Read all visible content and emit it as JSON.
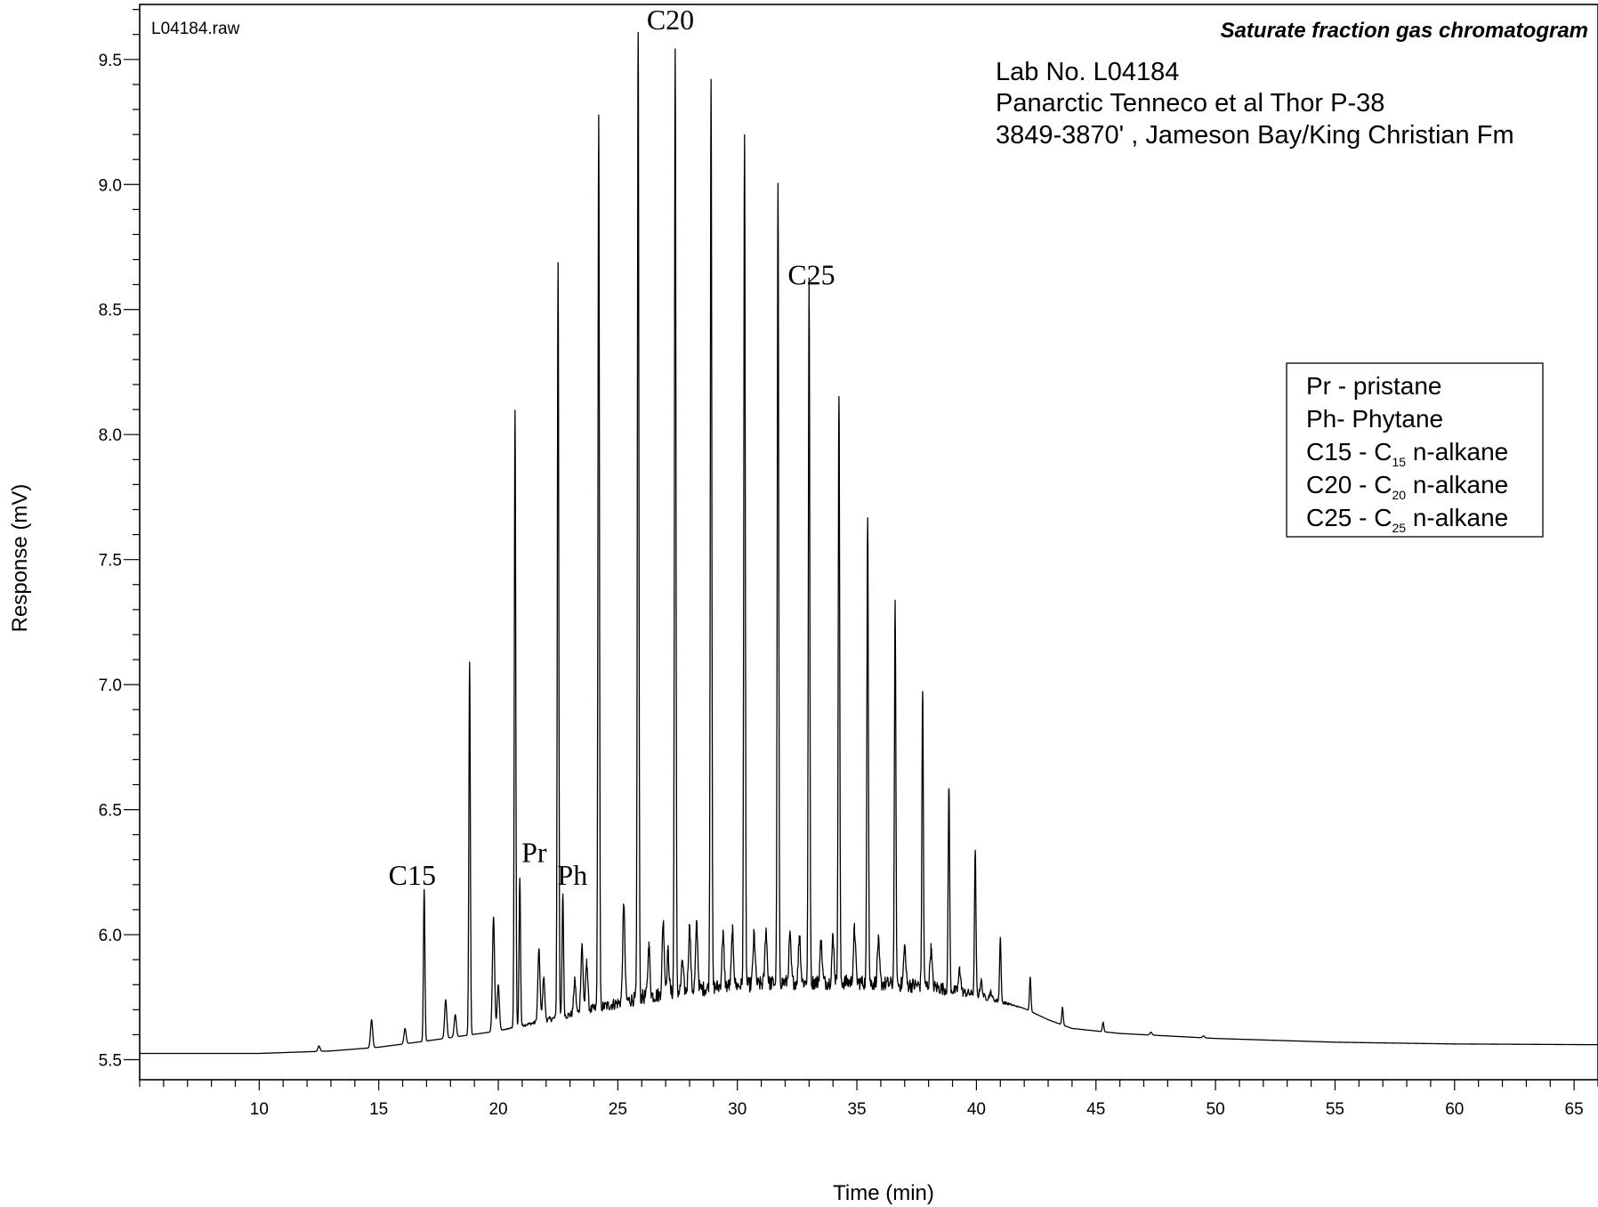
{
  "chart_data": {
    "type": "line",
    "title": "Saturate fraction gas chromatogram",
    "file_label": "L04184.raw",
    "info_lines": [
      "Lab No. L04184",
      "Panarctic Tenneco et al Thor P-38",
      "3849-3870' , Jameson Bay/King Christian Fm"
    ],
    "xlabel": "Time (min)",
    "ylabel": "Response (mV)",
    "xlim": [
      5,
      66
    ],
    "ylim": [
      5.42,
      9.72
    ],
    "x_ticks": [
      10,
      15,
      20,
      25,
      30,
      35,
      40,
      45,
      50,
      55,
      60,
      65
    ],
    "x_tick_labels": [
      "10",
      "15",
      "20",
      "25",
      "30",
      "35",
      "40",
      "45",
      "50",
      "55",
      "60",
      "65"
    ],
    "x_minor_step": 1,
    "y_ticks": [
      5.5,
      6.0,
      6.5,
      7.0,
      7.5,
      8.0,
      8.5,
      9.0,
      9.5
    ],
    "y_tick_labels": [
      "5.5",
      "6.0",
      "6.5",
      "7.0",
      "7.5",
      "8.0",
      "8.5",
      "9.0",
      "9.5"
    ],
    "y_minor_step": 0.1,
    "grid": false,
    "baseline": [
      [
        5,
        5.525
      ],
      [
        10,
        5.525
      ],
      [
        13,
        5.535
      ],
      [
        15,
        5.55
      ],
      [
        17,
        5.575
      ],
      [
        20,
        5.615
      ],
      [
        23,
        5.665
      ],
      [
        26,
        5.72
      ],
      [
        29,
        5.76
      ],
      [
        32,
        5.78
      ],
      [
        35,
        5.78
      ],
      [
        38,
        5.765
      ],
      [
        40,
        5.745
      ],
      [
        42,
        5.705
      ],
      [
        43,
        5.66
      ],
      [
        44,
        5.625
      ],
      [
        46,
        5.605
      ],
      [
        50,
        5.585
      ],
      [
        55,
        5.57
      ],
      [
        60,
        5.563
      ],
      [
        66,
        5.56
      ]
    ],
    "major_peaks": [
      {
        "x": 16.9,
        "y": 6.18
      },
      {
        "x": 18.8,
        "y": 7.09
      },
      {
        "x": 20.7,
        "y": 8.09
      },
      {
        "x": 20.9,
        "y": 6.22
      },
      {
        "x": 22.5,
        "y": 8.67
      },
      {
        "x": 22.7,
        "y": 6.15
      },
      {
        "x": 24.2,
        "y": 9.25
      },
      {
        "x": 25.85,
        "y": 9.6
      },
      {
        "x": 27.4,
        "y": 9.51
      },
      {
        "x": 28.9,
        "y": 9.4
      },
      {
        "x": 30.3,
        "y": 9.18
      },
      {
        "x": 31.7,
        "y": 8.96
      },
      {
        "x": 33.0,
        "y": 8.57
      },
      {
        "x": 34.25,
        "y": 8.14
      },
      {
        "x": 35.45,
        "y": 7.66
      },
      {
        "x": 36.6,
        "y": 7.28
      },
      {
        "x": 37.75,
        "y": 6.95
      },
      {
        "x": 38.85,
        "y": 6.58
      },
      {
        "x": 39.95,
        "y": 6.32
      },
      {
        "x": 41.0,
        "y": 5.98
      },
      {
        "x": 42.25,
        "y": 5.83
      },
      {
        "x": 43.6,
        "y": 5.71
      },
      {
        "x": 45.3,
        "y": 5.65
      }
    ],
    "minor_peaks": [
      {
        "x": 12.5,
        "y": 5.555
      },
      {
        "x": 14.7,
        "y": 5.66
      },
      {
        "x": 16.1,
        "y": 5.625
      },
      {
        "x": 17.8,
        "y": 5.74
      },
      {
        "x": 18.2,
        "y": 5.68
      },
      {
        "x": 19.8,
        "y": 6.07
      },
      {
        "x": 20.0,
        "y": 5.8
      },
      {
        "x": 21.7,
        "y": 5.93
      },
      {
        "x": 21.9,
        "y": 5.82
      },
      {
        "x": 23.2,
        "y": 5.8
      },
      {
        "x": 23.5,
        "y": 5.94
      },
      {
        "x": 23.7,
        "y": 5.87
      },
      {
        "x": 25.25,
        "y": 6.09
      },
      {
        "x": 26.3,
        "y": 5.92
      },
      {
        "x": 26.9,
        "y": 6.02
      },
      {
        "x": 27.1,
        "y": 5.9
      },
      {
        "x": 27.7,
        "y": 5.85
      },
      {
        "x": 28.0,
        "y": 6.0
      },
      {
        "x": 28.3,
        "y": 6.01
      },
      {
        "x": 29.4,
        "y": 5.97
      },
      {
        "x": 29.8,
        "y": 5.98
      },
      {
        "x": 30.7,
        "y": 5.97
      },
      {
        "x": 31.2,
        "y": 5.99
      },
      {
        "x": 32.2,
        "y": 5.96
      },
      {
        "x": 32.6,
        "y": 5.97
      },
      {
        "x": 33.5,
        "y": 5.94
      },
      {
        "x": 34.0,
        "y": 5.96
      },
      {
        "x": 34.9,
        "y": 5.99
      },
      {
        "x": 35.9,
        "y": 5.94
      },
      {
        "x": 37.0,
        "y": 5.92
      },
      {
        "x": 38.1,
        "y": 5.91
      },
      {
        "x": 39.3,
        "y": 5.84
      },
      {
        "x": 40.2,
        "y": 5.8
      },
      {
        "x": 40.6,
        "y": 5.76
      },
      {
        "x": 47.3,
        "y": 5.61
      },
      {
        "x": 49.5,
        "y": 5.595
      }
    ],
    "peak_labels": [
      {
        "text": "C15",
        "x": 16.4,
        "y": 6.2
      },
      {
        "text": "Pr",
        "x": 21.5,
        "y": 6.29
      },
      {
        "text": "Ph",
        "x": 23.1,
        "y": 6.2
      },
      {
        "text": "C20",
        "x": 27.2,
        "y": 9.62
      },
      {
        "text": "C25",
        "x": 33.1,
        "y": 8.6
      }
    ],
    "legend": {
      "position": "right",
      "entries": [
        {
          "prefix": "Pr - pristane",
          "sub": "",
          "suffix": ""
        },
        {
          "prefix": "Ph- Phytane",
          "sub": "",
          "suffix": ""
        },
        {
          "prefix": "C15 - C",
          "sub": "15",
          "suffix": " n-alkane"
        },
        {
          "prefix": "C20 - C",
          "sub": "20",
          "suffix": " n-alkane"
        },
        {
          "prefix": "C25 - C",
          "sub": "25",
          "suffix": " n-alkane"
        }
      ]
    }
  }
}
